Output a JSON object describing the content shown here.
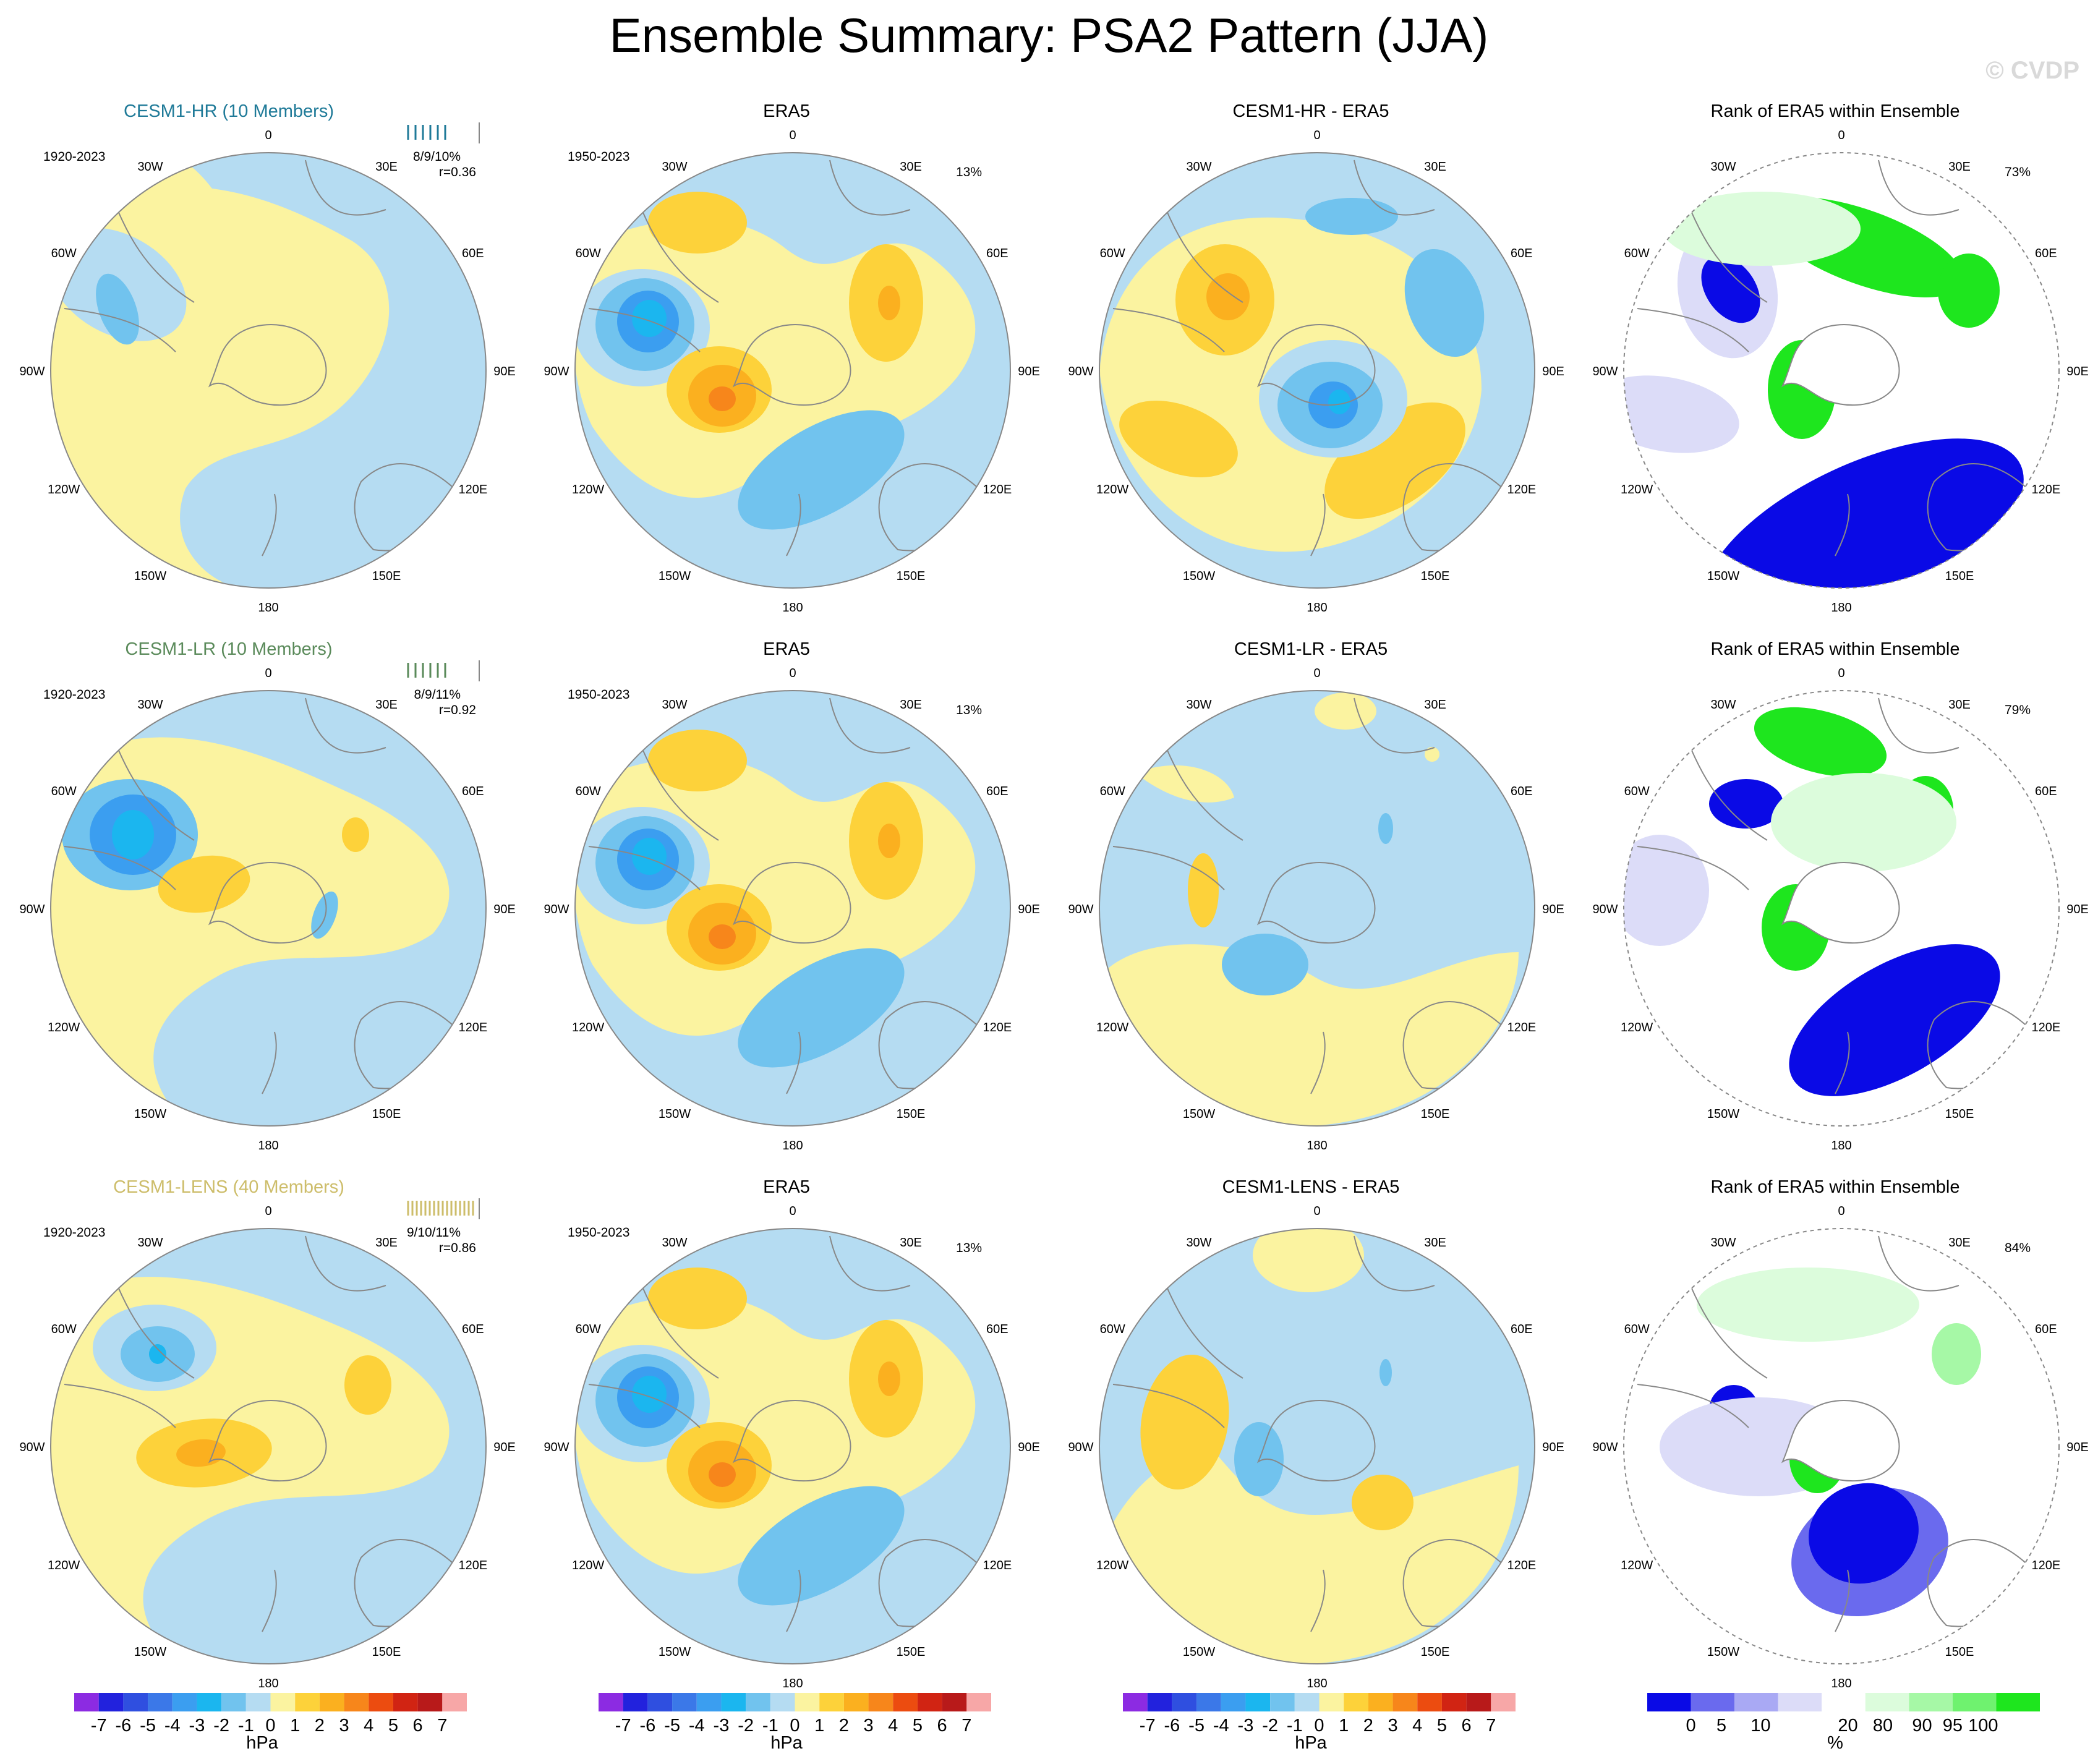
{
  "title": "Ensemble Summary: PSA2 Pattern (JJA)",
  "watermark": "© CVDP",
  "colors": {
    "hr_title": "#1f7a98",
    "lr_title": "#5a8a5a",
    "lens_title": "#cdbd6a",
    "ocean_blue": "#b5dcf2",
    "land_outline": "#888888"
  },
  "map_labels": {
    "lon_ticks": [
      "0",
      "30E",
      "60E",
      "90E",
      "120E",
      "150E",
      "180",
      "150W",
      "120W",
      "90W",
      "60W",
      "30W"
    ]
  },
  "rows": [
    {
      "panels": [
        {
          "kind": "model",
          "title": "CESM1-HR (10 Members)",
          "period": "1920-2023",
          "stats": "8/9/10%",
          "corr": "r=0.36"
        },
        {
          "kind": "obs",
          "title": "ERA5",
          "period": "1950-2023",
          "pct": "13%"
        },
        {
          "kind": "diff",
          "title": "CESM1-HR - ERA5"
        },
        {
          "kind": "rank",
          "title": "Rank of ERA5 within Ensemble",
          "pct": "73%"
        }
      ]
    },
    {
      "panels": [
        {
          "kind": "model",
          "title": "CESM1-LR (10 Members)",
          "period": "1920-2023",
          "stats": "8/9/11%",
          "corr": "r=0.92"
        },
        {
          "kind": "obs",
          "title": "ERA5",
          "period": "1950-2023",
          "pct": "13%"
        },
        {
          "kind": "diff",
          "title": "CESM1-LR - ERA5"
        },
        {
          "kind": "rank",
          "title": "Rank of ERA5 within Ensemble",
          "pct": "79%"
        }
      ]
    },
    {
      "panels": [
        {
          "kind": "model",
          "title": "CESM1-LENS (40 Members)",
          "period": "1920-2023",
          "stats": "9/10/11%",
          "corr": "r=0.86"
        },
        {
          "kind": "obs",
          "title": "ERA5",
          "period": "1950-2023",
          "pct": "13%"
        },
        {
          "kind": "diff",
          "title": "CESM1-LENS - ERA5"
        },
        {
          "kind": "rank",
          "title": "Rank of ERA5 within Ensemble",
          "pct": "84%"
        }
      ]
    }
  ],
  "chart_data": {
    "type": "heatmap",
    "projection": "south-polar-stereographic",
    "hpa_colorbar": {
      "unit": "hPa",
      "tick_labels": [
        "-7",
        "-6",
        "-5",
        "-4",
        "-3",
        "-2",
        "-1",
        "0",
        "1",
        "2",
        "3",
        "4",
        "5",
        "6",
        "7"
      ],
      "colors": [
        "#8c2be2",
        "#2222dd",
        "#2f4fe0",
        "#3b78e8",
        "#3b9ef0",
        "#1bb6ef",
        "#71c3ee",
        "#b5dcf2",
        "#fbf3a0",
        "#fdd23a",
        "#fbb01f",
        "#f7861b",
        "#ec4c10",
        "#d12413",
        "#b81a1a",
        "#f7a7a7"
      ]
    },
    "rank_colorbar": {
      "unit": "%",
      "tick_labels": [
        "0",
        "5",
        "10",
        "20",
        "80",
        "90",
        "95",
        "100"
      ],
      "colors": [
        "#0a0ae6",
        "#6a6aee",
        "#a9a9f4",
        "#dcdcf8",
        "#ffffff",
        "#dcfcdc",
        "#a6f8a6",
        "#6ff26f",
        "#1ee61e"
      ]
    },
    "bands": {
      "blue": "#b5dcf2",
      "yellow": "#fbf3a0",
      "m1": "#71c3ee",
      "m2": "#3b9ef0",
      "m3": "#1bb6ef",
      "p1": "#fdd23a",
      "p2": "#fbb01f",
      "p3": "#f7861b",
      "r_dark": "#0a0ae6",
      "r_mid": "#6a6aee",
      "r_light": "#dcdcf8",
      "g_light": "#dcfcdc",
      "g_mid": "#a6f8a6",
      "g_dark": "#1ee61e"
    }
  }
}
